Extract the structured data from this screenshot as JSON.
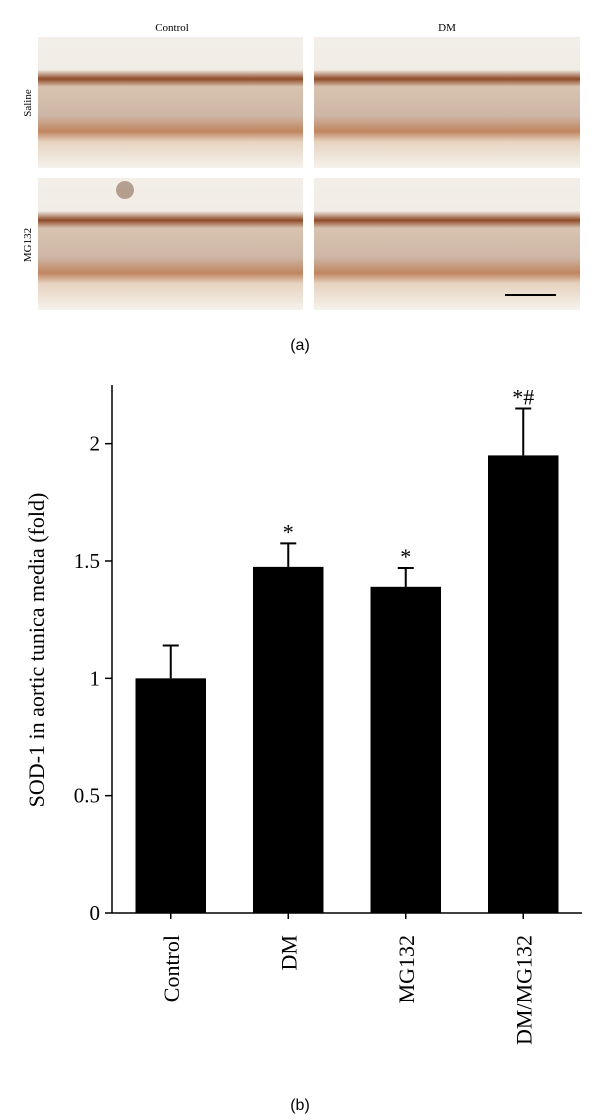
{
  "panel_a": {
    "columns": [
      "Control",
      "DM"
    ],
    "rows": [
      "Saline",
      "MG132"
    ],
    "label": "(a)"
  },
  "panel_b_label": "(b)",
  "chart_data": {
    "type": "bar",
    "ylabel": "SOD-1 in aortic tunica media (fold)",
    "categories": [
      "Control",
      "DM",
      "MG132",
      "DM/MG132"
    ],
    "values": [
      1.0,
      1.475,
      1.39,
      1.95
    ],
    "errors": [
      0.14,
      0.1,
      0.08,
      0.2
    ],
    "annotations": [
      null,
      "*",
      "*",
      "*#"
    ],
    "color": "#000000",
    "ylim": [
      0,
      2.25
    ],
    "yticks": [
      0,
      0.5,
      1,
      1.5,
      2
    ]
  }
}
